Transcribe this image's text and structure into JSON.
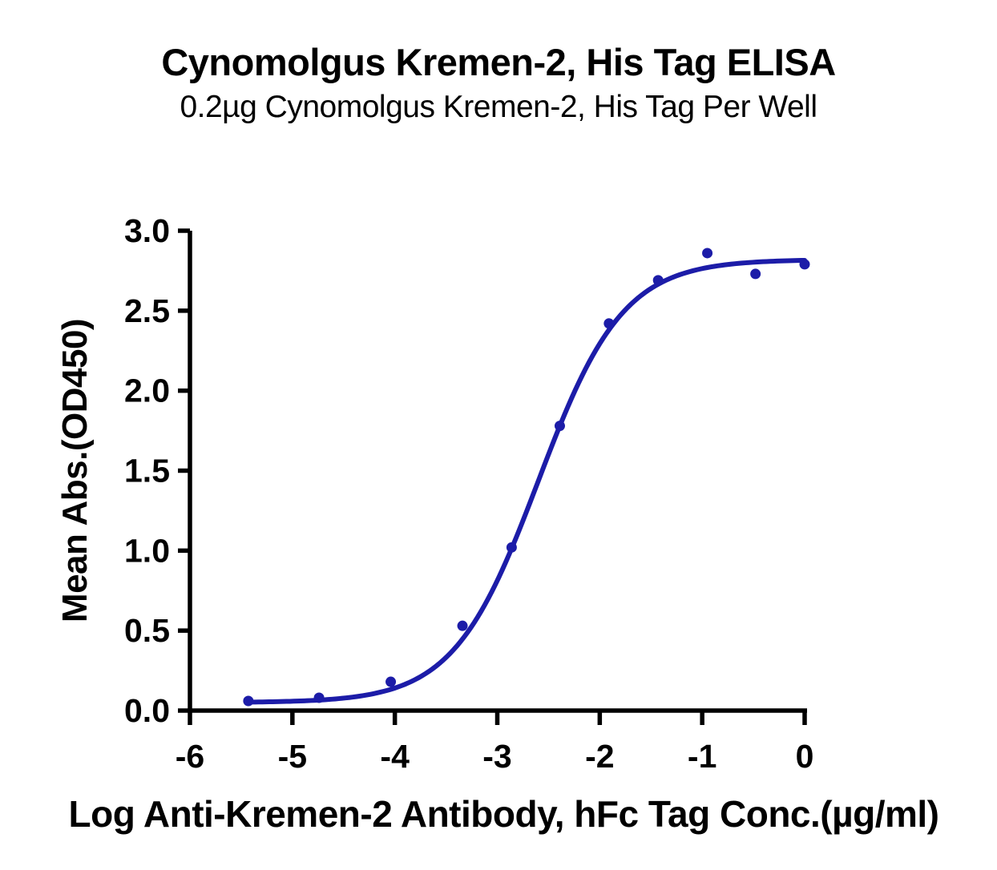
{
  "chart_data": {
    "type": "scatter",
    "title": "Cynomolgus Kremen-2, His Tag ELISA",
    "subtitle": "0.2µg Cynomolgus Kremen-2, His Tag Per Well",
    "xlabel": "Log Anti-Kremen-2 Antibody, hFc Tag Conc.(µg/ml)",
    "ylabel": "Mean Abs.(OD450)",
    "xlim": [
      -6,
      0
    ],
    "ylim": [
      0,
      3
    ],
    "x_ticks": [
      -6,
      -5,
      -4,
      -3,
      -2,
      -1,
      0
    ],
    "y_ticks": [
      0.0,
      0.5,
      1.0,
      1.5,
      2.0,
      2.5,
      3.0
    ],
    "grid": false,
    "legend": "none",
    "axis_color": "#000000",
    "series": [
      {
        "color": "#1C1CA8",
        "points": [
          [
            -5.43,
            0.06
          ],
          [
            -4.74,
            0.08
          ],
          [
            -4.04,
            0.18
          ],
          [
            -3.34,
            0.53
          ],
          [
            -2.86,
            1.02
          ],
          [
            -2.39,
            1.78
          ],
          [
            -1.91,
            2.42
          ],
          [
            -1.43,
            2.69
          ],
          [
            -0.95,
            2.86
          ],
          [
            -0.48,
            2.73
          ],
          [
            0.0,
            2.79
          ]
        ],
        "fit_4pl": {
          "bottom": 0.05,
          "top": 2.82,
          "log_ec50": -2.6,
          "hill": 1.05
        }
      }
    ]
  }
}
